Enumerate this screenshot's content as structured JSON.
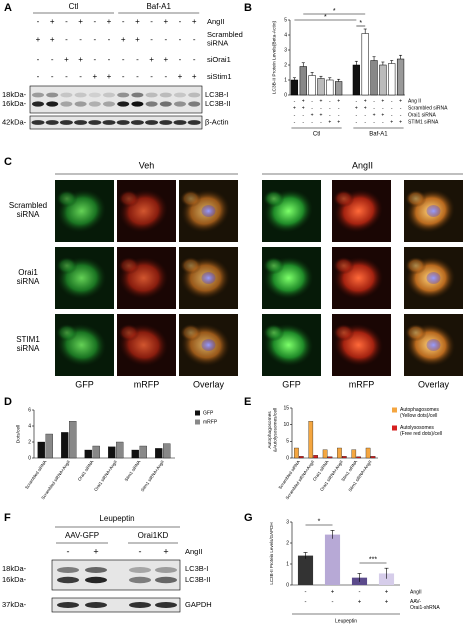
{
  "panels": {
    "A": {
      "letter": "A",
      "groups": [
        "Ctl",
        "Baf-A1"
      ],
      "rows": [
        {
          "name": "AngII",
          "signs": [
            "-",
            "+",
            "-",
            "+",
            "-",
            "+",
            "-",
            "+",
            "-",
            "+",
            "-",
            "+"
          ]
        },
        {
          "name": [
            "Scrambled",
            "siRNA"
          ],
          "signs": [
            "+",
            "+",
            "-",
            "-",
            "-",
            "-",
            "+",
            "+",
            "-",
            "-",
            "-",
            "-"
          ]
        },
        {
          "name": "siOrai1",
          "signs": [
            "-",
            "-",
            "+",
            "+",
            "-",
            "-",
            "-",
            "-",
            "+",
            "+",
            "-",
            "-"
          ]
        },
        {
          "name": "siStim1",
          "signs": [
            "-",
            "-",
            "-",
            "-",
            "+",
            "+",
            "-",
            "-",
            "-",
            "-",
            "+",
            "+"
          ]
        }
      ],
      "blots": [
        {
          "markers": [
            "18kDa-",
            "16kDa-"
          ],
          "bands": [
            "LC3B-I",
            "LC3B-II"
          ]
        },
        {
          "markers": [
            "42kDa-"
          ],
          "bands": [
            "β-Actin"
          ]
        }
      ]
    },
    "B": {
      "letter": "B",
      "ylabel": "LC3B-II Protein Levels(Beta-Actin)",
      "values": [
        1.0,
        1.9,
        1.3,
        1.1,
        1.0,
        0.9,
        2.0,
        4.1,
        2.3,
        2.0,
        2.1,
        2.4
      ],
      "errors": [
        0.15,
        0.25,
        0.2,
        0.15,
        0.15,
        0.15,
        0.25,
        0.3,
        0.25,
        0.2,
        0.2,
        0.25
      ],
      "colors": [
        "#111111",
        "#888888",
        "#ffffff",
        "#bbbbbb",
        "#ffffff",
        "#999999",
        "#111111",
        "#ffffff",
        "#888888",
        "#bbbbbb",
        "#ffffff",
        "#999999"
      ],
      "ylim": [
        0,
        5
      ],
      "yticks": [
        0,
        1,
        2,
        3,
        4,
        5
      ],
      "rows": [
        {
          "name": "Ang II",
          "signs": [
            "-",
            "+",
            "-",
            "+",
            "-",
            "+",
            "-",
            "+",
            "-",
            "+",
            "-",
            "+"
          ]
        },
        {
          "name": "Scrambled siRNA",
          "signs": [
            "+",
            "+",
            "-",
            "-",
            "-",
            "-",
            "+",
            "+",
            "-",
            "-",
            "-",
            "-"
          ]
        },
        {
          "name": "Orai1 siRNA",
          "signs": [
            "-",
            "-",
            "+",
            "+",
            "-",
            "-",
            "-",
            "-",
            "+",
            "+",
            "-",
            "-"
          ]
        },
        {
          "name": "STIM1 siRNA",
          "signs": [
            "-",
            "-",
            "-",
            "-",
            "+",
            "+",
            "-",
            "-",
            "-",
            "-",
            "+",
            "+"
          ]
        }
      ],
      "groups": [
        "Ctl",
        "Baf-A1"
      ],
      "annotations": [
        "*",
        "*",
        "*"
      ]
    },
    "C": {
      "letter": "C",
      "conditions": [
        "Veh",
        "AngII"
      ],
      "rows": [
        [
          "Scrambled",
          "siRNA"
        ],
        [
          "Orai1",
          "siRNA"
        ],
        [
          "STIM1",
          "siRNA"
        ]
      ],
      "channels": [
        "GFP",
        "mRFP",
        "Overlay",
        "GFP",
        "mRFP",
        "Overlay"
      ]
    },
    "D": {
      "letter": "D",
      "ylabel": "Dots/cell",
      "categories": [
        "Scrambled siRNA",
        "Scrambled siRNA+AngII",
        "Orai1 siRNA",
        "Orai1 siRNA+AngII",
        "Stim1 siRNA",
        "Stim1 siRNA+AngII"
      ],
      "series": [
        {
          "name": "GFP",
          "color": "#111111",
          "values": [
            2.0,
            3.2,
            1.0,
            1.4,
            1.0,
            1.2
          ]
        },
        {
          "name": "mRFP",
          "color": "#888888",
          "values": [
            3.0,
            4.6,
            1.5,
            2.0,
            1.5,
            1.8
          ]
        }
      ],
      "ylim": [
        0,
        6
      ],
      "yticks": [
        0,
        2,
        4,
        6
      ]
    },
    "E": {
      "letter": "E",
      "ylabel": [
        "Autophagosomes",
        "&Autolysosomes/cell"
      ],
      "categories": [
        "Scrambled siRNA",
        "Scrambled siRNA+AngII",
        "Orai1 siRNA",
        "Orai1 siRNA+AngII",
        "Stim1 siRNA",
        "Stim1 siRNA+AngII"
      ],
      "series": [
        {
          "name": [
            "Autophagosomes",
            "(Yellow dots)/cell"
          ],
          "color": "#f4a640",
          "values": [
            3.0,
            11.0,
            2.5,
            3.0,
            2.5,
            3.0
          ]
        },
        {
          "name": [
            "Autolysosomes",
            "(Free red dots)/cell"
          ],
          "color": "#d62020",
          "values": [
            0.5,
            0.8,
            0.4,
            0.5,
            0.4,
            0.5
          ]
        }
      ],
      "ylim": [
        0,
        15
      ],
      "yticks": [
        0,
        5,
        10,
        15
      ]
    },
    "F": {
      "letter": "F",
      "treatment": "Leupeptin",
      "groups": [
        "AAV-GFP",
        "Orai1KD"
      ],
      "row": {
        "name": "AngII",
        "signs": [
          "-",
          "+",
          "-",
          "+"
        ]
      },
      "blots": [
        {
          "markers": [
            "18kDa-",
            "16kDa-"
          ],
          "bands": [
            "LC3B-I",
            "LC3B-II"
          ]
        },
        {
          "markers": [
            "37kDa-"
          ],
          "bands": [
            "GAPDH"
          ]
        }
      ]
    },
    "G": {
      "letter": "G",
      "ylabel": "LC3B-II Protein Levels/GAPDH",
      "values": [
        1.4,
        2.4,
        0.35,
        0.55
      ],
      "errors": [
        0.15,
        0.2,
        0.2,
        0.25
      ],
      "colors": [
        "#333333",
        "#b7a9d6",
        "#5b4a8b",
        "#d6cdea"
      ],
      "ylim": [
        0,
        3
      ],
      "yticks": [
        0,
        1,
        2,
        3
      ],
      "rows": [
        {
          "name": "AngII",
          "signs": [
            "-",
            "+",
            "-",
            "+"
          ]
        },
        {
          "name": [
            "AAV-",
            "Orai1-shRNA"
          ],
          "signs": [
            "-",
            "-",
            "+",
            "+"
          ]
        }
      ],
      "treatment": "Leupeptin",
      "annotations": [
        "*",
        "***"
      ]
    }
  }
}
